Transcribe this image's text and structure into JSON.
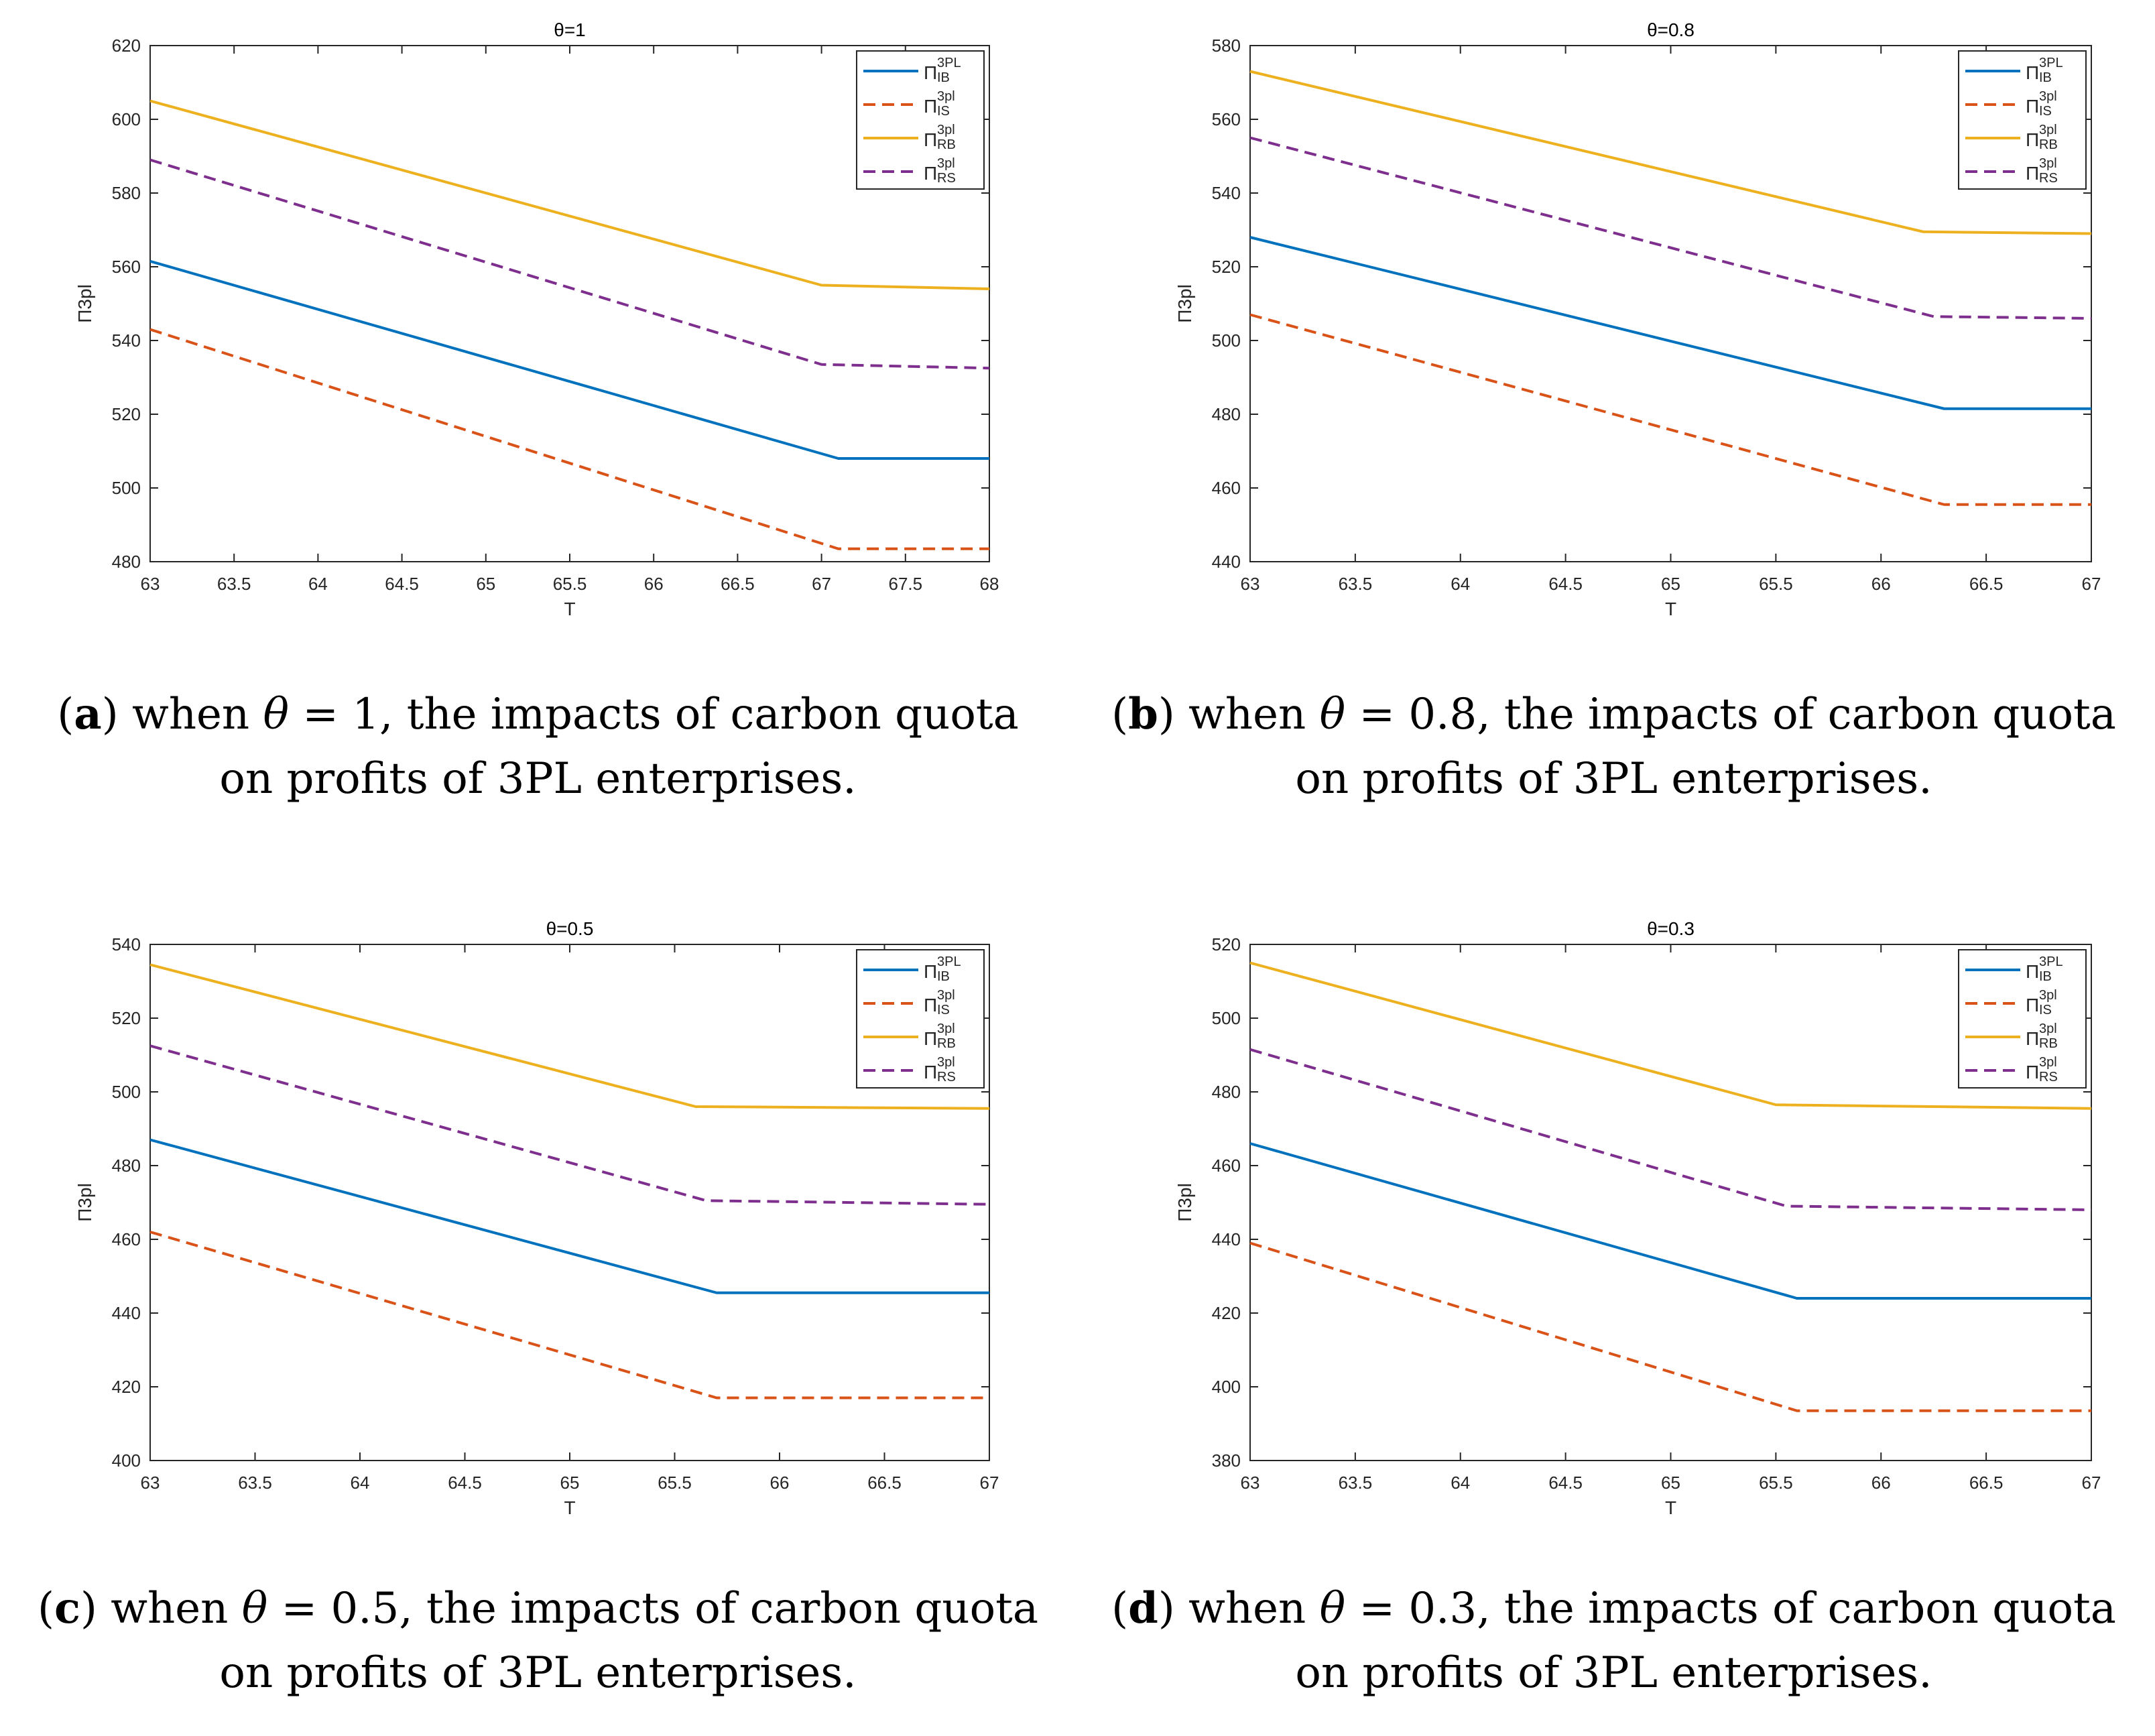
{
  "legend_labels": [
    {
      "sym": "Π",
      "sup": "3PL",
      "sub": "IB"
    },
    {
      "sym": "Π",
      "sup": "3pl",
      "sub": "IS"
    },
    {
      "sym": "Π",
      "sup": "3pl",
      "sub": "RB"
    },
    {
      "sym": "Π",
      "sup": "3pl",
      "sub": "RS"
    }
  ],
  "captions": [
    {
      "letter": "a",
      "pre": "when ",
      "theta": "θ",
      "rest": " = 1, the impacts of carbon quota",
      "line2": "on profits of 3PL enterprises."
    },
    {
      "letter": "b",
      "pre": "when ",
      "theta": "θ",
      "rest": " = 0.8, the impacts of carbon quota",
      "line2": "on profits of 3PL enterprises."
    },
    {
      "letter": "c",
      "pre": "when ",
      "theta": "θ",
      "rest": " = 0.5, the impacts of carbon quota",
      "line2": "on profits of 3PL enterprises."
    },
    {
      "letter": "d",
      "pre": "when ",
      "theta": "θ",
      "rest": " = 0.3, the impacts of carbon quota",
      "line2": "on profits of 3PL enterprises."
    }
  ],
  "chart_data": [
    {
      "type": "line",
      "title": "θ=1",
      "xlabel": "T",
      "ylabel": "Π3pl",
      "xlim": [
        63,
        68
      ],
      "ylim": [
        480,
        620
      ],
      "xticks": [
        "63",
        "63.5",
        "64",
        "64.5",
        "65",
        "65.5",
        "66",
        "66.5",
        "67",
        "67.5",
        "68"
      ],
      "yticks": [
        "480",
        "500",
        "520",
        "540",
        "560",
        "580",
        "600",
        "620"
      ],
      "grid": false,
      "legend_position": "top-right",
      "series": [
        {
          "color": "#0072BD",
          "dash": "solid",
          "x": [
            63,
            67.1,
            68
          ],
          "y": [
            561.5,
            508,
            508
          ]
        },
        {
          "color": "#D95319",
          "dash": "dashed",
          "x": [
            63,
            67.1,
            68
          ],
          "y": [
            543,
            483.5,
            483.5
          ]
        },
        {
          "color": "#EDB120",
          "dash": "solid",
          "x": [
            63,
            67.0,
            68
          ],
          "y": [
            605,
            555,
            554
          ]
        },
        {
          "color": "#7E2F8E",
          "dash": "dashed",
          "x": [
            63,
            67.0,
            68
          ],
          "y": [
            589,
            533.5,
            532.5
          ]
        }
      ]
    },
    {
      "type": "line",
      "title": "θ=0.8",
      "xlabel": "T",
      "ylabel": "Π3pl",
      "xlim": [
        63,
        67
      ],
      "ylim": [
        440,
        580
      ],
      "xticks": [
        "63",
        "63.5",
        "64",
        "64.5",
        "65",
        "65.5",
        "66",
        "66.5",
        "67"
      ],
      "yticks": [
        "440",
        "460",
        "480",
        "500",
        "520",
        "540",
        "560",
        "580"
      ],
      "grid": false,
      "legend_position": "top-right",
      "series": [
        {
          "color": "#0072BD",
          "dash": "solid",
          "x": [
            63,
            66.3,
            67
          ],
          "y": [
            528,
            481.5,
            481.5
          ]
        },
        {
          "color": "#D95319",
          "dash": "dashed",
          "x": [
            63,
            66.3,
            67
          ],
          "y": [
            507,
            455.5,
            455.5
          ]
        },
        {
          "color": "#EDB120",
          "dash": "solid",
          "x": [
            63,
            66.2,
            67
          ],
          "y": [
            573,
            529.5,
            529
          ]
        },
        {
          "color": "#7E2F8E",
          "dash": "dashed",
          "x": [
            63,
            66.25,
            67
          ],
          "y": [
            555,
            506.5,
            506
          ]
        }
      ]
    },
    {
      "type": "line",
      "title": "θ=0.5",
      "xlabel": "T",
      "ylabel": "Π3pl",
      "xlim": [
        63,
        67
      ],
      "ylim": [
        400,
        540
      ],
      "xticks": [
        "63",
        "63.5",
        "64",
        "64.5",
        "65",
        "65.5",
        "66",
        "66.5",
        "67"
      ],
      "yticks": [
        "400",
        "420",
        "440",
        "460",
        "480",
        "500",
        "520",
        "540"
      ],
      "grid": false,
      "legend_position": "top-right",
      "series": [
        {
          "color": "#0072BD",
          "dash": "solid",
          "x": [
            63,
            65.7,
            67
          ],
          "y": [
            487,
            445.5,
            445.5
          ]
        },
        {
          "color": "#D95319",
          "dash": "dashed",
          "x": [
            63,
            65.7,
            67
          ],
          "y": [
            462,
            417,
            417
          ]
        },
        {
          "color": "#EDB120",
          "dash": "solid",
          "x": [
            63,
            65.6,
            67
          ],
          "y": [
            534.5,
            496,
            495.5
          ]
        },
        {
          "color": "#7E2F8E",
          "dash": "dashed",
          "x": [
            63,
            65.65,
            67
          ],
          "y": [
            512.5,
            470.5,
            469.5
          ]
        }
      ]
    },
    {
      "type": "line",
      "title": "θ=0.3",
      "xlabel": "T",
      "ylabel": "Π3pl",
      "xlim": [
        63,
        67
      ],
      "ylim": [
        380,
        520
      ],
      "xticks": [
        "63",
        "63.5",
        "64",
        "64.5",
        "65",
        "65.5",
        "66",
        "66.5",
        "67"
      ],
      "yticks": [
        "380",
        "400",
        "420",
        "440",
        "460",
        "480",
        "500",
        "520"
      ],
      "grid": false,
      "legend_position": "top-right",
      "series": [
        {
          "color": "#0072BD",
          "dash": "solid",
          "x": [
            63,
            65.6,
            67
          ],
          "y": [
            466,
            424,
            424
          ]
        },
        {
          "color": "#D95319",
          "dash": "dashed",
          "x": [
            63,
            65.6,
            67
          ],
          "y": [
            439,
            393.5,
            393.5
          ]
        },
        {
          "color": "#EDB120",
          "dash": "solid",
          "x": [
            63,
            65.5,
            67
          ],
          "y": [
            515,
            476.5,
            475.5
          ]
        },
        {
          "color": "#7E2F8E",
          "dash": "dashed",
          "x": [
            63,
            65.55,
            67
          ],
          "y": [
            491.5,
            449,
            448
          ]
        }
      ]
    }
  ]
}
